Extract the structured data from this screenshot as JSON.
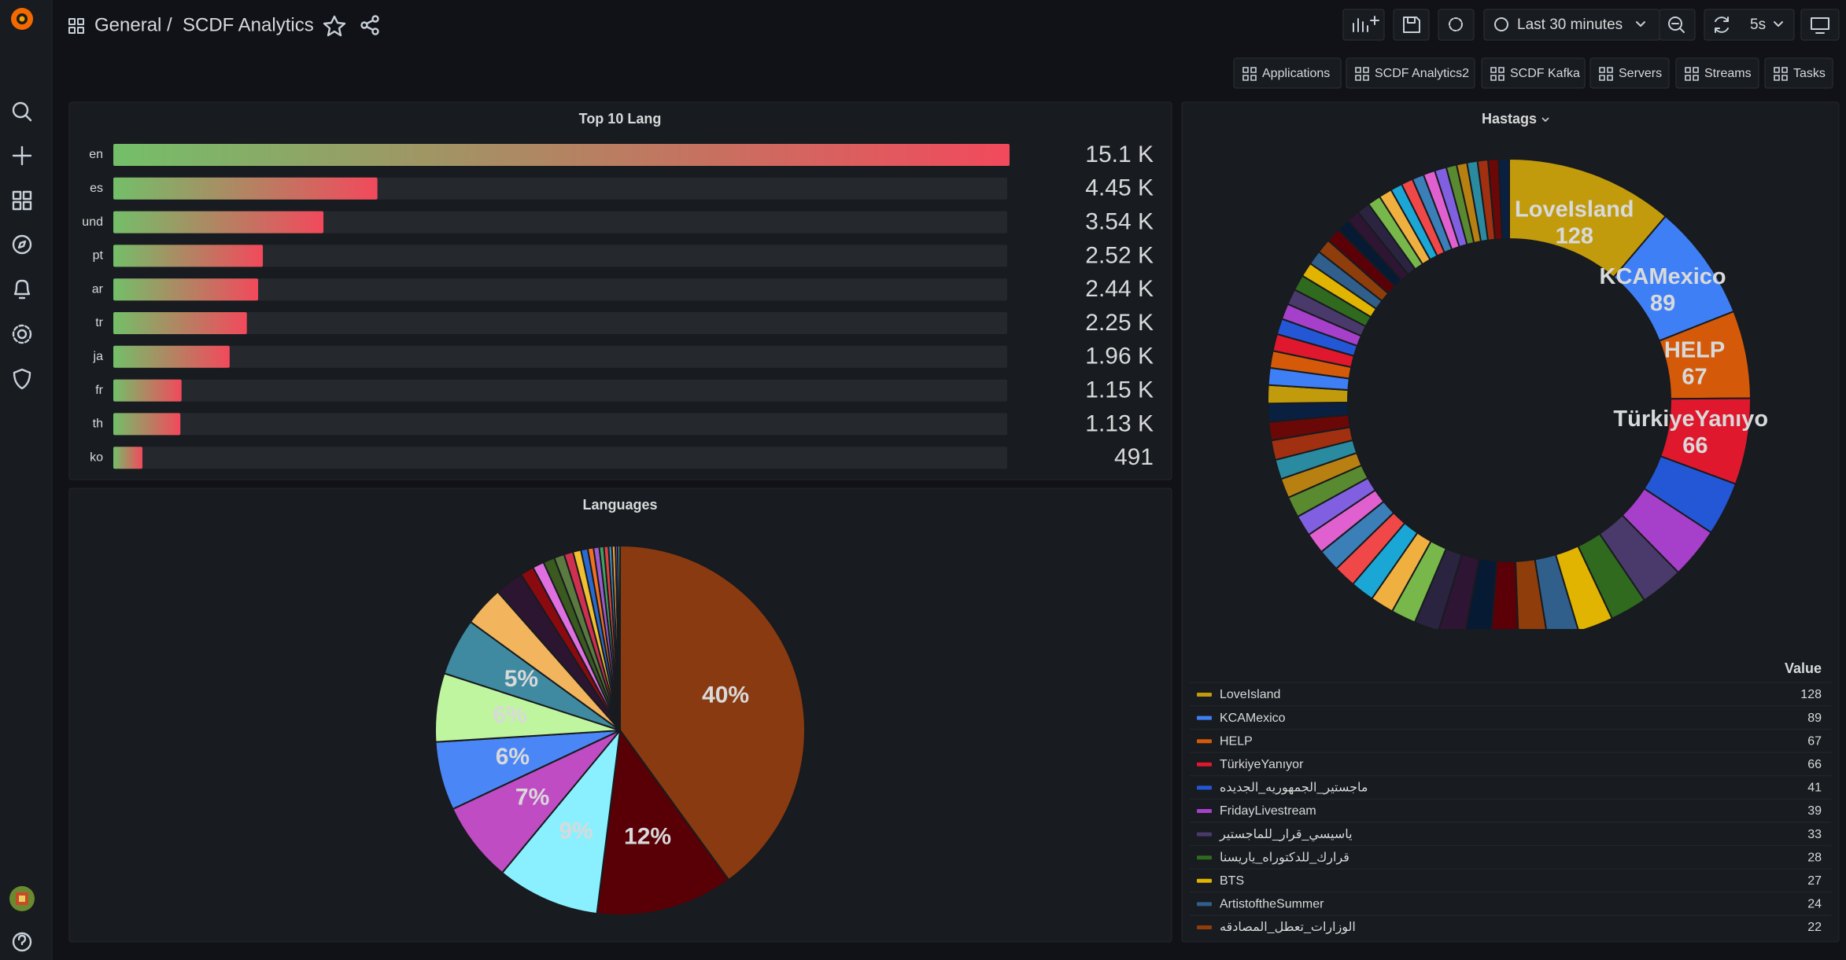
{
  "header": {
    "breadcrumb": [
      "General",
      "SCDF Analytics"
    ],
    "separator": "/",
    "time_range": "Last 30 minutes",
    "refresh": "5s"
  },
  "links": [
    "Applications",
    "SCDF Analytics2",
    "SCDF Kafka",
    "Servers",
    "Streams",
    "Tasks"
  ],
  "chart_data": [
    {
      "type": "bar",
      "orientation": "horizontal",
      "title": "Top 10 Lang",
      "categories": [
        "en",
        "es",
        "und",
        "pt",
        "ar",
        "tr",
        "ja",
        "fr",
        "th",
        "ko"
      ],
      "values": [
        15100,
        4450,
        3540,
        2520,
        2440,
        2250,
        1960,
        1150,
        1130,
        491
      ],
      "value_labels": [
        "15.1 K",
        "4.45 K",
        "3.54 K",
        "2.52 K",
        "2.44 K",
        "2.25 K",
        "1.96 K",
        "1.15 K",
        "1.13 K",
        "491"
      ],
      "xlim": [
        0,
        15100
      ],
      "gradient": [
        "#73bf69",
        "#f2495c"
      ],
      "value_color": "#f2495c"
    },
    {
      "type": "pie",
      "title": "Languages",
      "values": [
        40,
        12,
        9,
        7,
        6,
        6,
        5,
        3.5,
        2.5,
        1.2,
        1,
        1,
        0.9,
        0.8,
        0.7,
        0.6,
        0.5,
        0.5,
        0.4,
        0.4,
        0.3,
        0.3,
        0.2,
        0.2
      ],
      "value_labels": [
        "40%",
        "12%",
        "9%",
        "7%",
        "6%",
        "6%",
        "5%",
        null,
        null,
        null,
        null,
        null,
        null,
        null,
        null,
        null,
        null,
        null,
        null,
        null,
        null,
        null,
        null,
        null
      ],
      "colors": [
        "#8a3a10",
        "#580006",
        "#8af0ff",
        "#c04cc4",
        "#4a86f5",
        "#c0f5a0",
        "#3f8aa0",
        "#f2b45c",
        "#2b1530",
        "#8a0a10",
        "#e070e0",
        "#3a5a20",
        "#5a7a40",
        "#d03050",
        "#f0c030",
        "#2a6ad0",
        "#f07020",
        "#a05ad0",
        "#40a060",
        "#e04040",
        "#3a90c0",
        "#f0a040",
        "#8060e0",
        "#60c0a0"
      ]
    },
    {
      "type": "donut",
      "title": "Hastags",
      "legend_header": "Value",
      "categories": [
        "LoveIsland",
        "KCAMexico",
        "HELP",
        "TürkiyeYanıyor",
        "ماجستير_الجمهوريه_الجديده",
        "FridayLivestream",
        "ياسيسي_قرار_للماجستير",
        "قرارك_للدكتوراه_ياريسنا",
        "BTS",
        "ArtistoftheSummer",
        "الوزارات_تعطل_المصادقه",
        null,
        null,
        null,
        null,
        null,
        null,
        null,
        null,
        null,
        null,
        null,
        null,
        null,
        null,
        null,
        null,
        null,
        null,
        null,
        null,
        null,
        null,
        null,
        null,
        null,
        null,
        null,
        null,
        null,
        null,
        null,
        null,
        null,
        null,
        null,
        null,
        null,
        null,
        null,
        null,
        null,
        null,
        null,
        null,
        null
      ],
      "values": [
        128,
        89,
        67,
        66,
        41,
        39,
        33,
        28,
        27,
        24,
        22,
        21,
        20,
        20,
        19,
        19,
        18,
        18,
        17,
        17,
        16,
        16,
        16,
        15,
        15,
        15,
        14,
        14,
        14,
        13,
        13,
        13,
        12,
        12,
        12,
        12,
        11,
        11,
        11,
        11,
        10,
        10,
        10,
        10,
        10,
        9,
        9,
        9,
        9,
        9,
        8,
        8,
        8,
        8,
        8,
        8
      ],
      "palette": [
        "#c29b0c",
        "#3f7ff5",
        "#d45a0a",
        "#e0182d",
        "#2457d6",
        "#a63fc9",
        "#4a3a6b",
        "#2f6a1f",
        "#e0b400",
        "#2f5f8a",
        "#8f3d0a",
        "#5c0008",
        "#061a33",
        "#2e1533",
        "#2a2440",
        "#78b84a",
        "#f0b040",
        "#1aa7d6",
        "#f04848",
        "#3a7fb8",
        "#e060d0",
        "#8060e0",
        "#5a8a30",
        "#b88010",
        "#2a8aa0",
        "#a03010",
        "#6a0808",
        "#0a2040"
      ],
      "label_count": 4
    }
  ]
}
